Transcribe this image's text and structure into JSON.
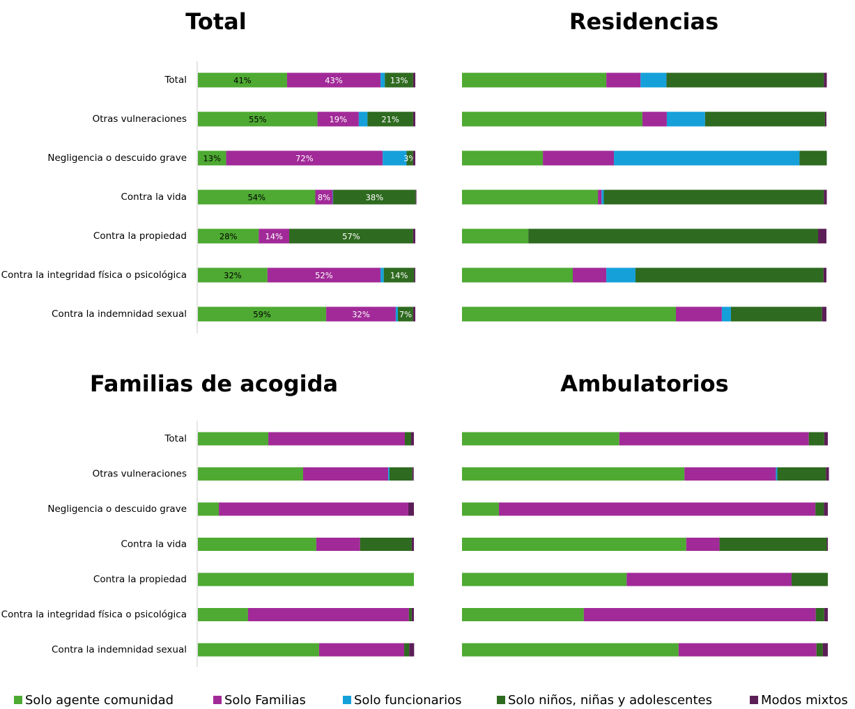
{
  "chart_data": [
    {
      "type": "bar",
      "orientation": "horizontal",
      "stacked": true,
      "title": "Total",
      "categories": [
        "Total",
        "Otras vulneraciones",
        "Negligencia o descuido grave",
        "Contra la vida",
        "Contra la propiedad",
        "Contra la integridad física o psicológica",
        "Contra la indemnidad sexual"
      ],
      "xlim": [
        0,
        100
      ],
      "series": [
        {
          "name": "Solo agente comunidad",
          "color": "#4eaa32",
          "values": [
            41,
            55,
            13,
            54,
            28,
            32,
            59
          ],
          "value_labels": [
            "41%",
            "55%",
            "13%",
            "54%",
            "28%",
            "32%",
            "59%"
          ]
        },
        {
          "name": "Solo Familias",
          "color": "#a12a98",
          "values": [
            43,
            19,
            72,
            8,
            14,
            52,
            32
          ],
          "value_labels": [
            "43%",
            "19%",
            "72%",
            "8%",
            "14%",
            "52%",
            "32%"
          ]
        },
        {
          "name": "Solo funcionarios",
          "color": "#15a0da",
          "values": [
            2,
            4,
            11,
            0.2,
            0,
            1.5,
            1
          ]
        },
        {
          "name": "Solo niños, niñas y adolescentes",
          "color": "#2e6a1f",
          "values": [
            13,
            21,
            3,
            38,
            57,
            14,
            7
          ],
          "value_labels": [
            "13%",
            "21%",
            "3%",
            "38%",
            "57%",
            "14%",
            "7%"
          ]
        },
        {
          "name": "Modos mixtos",
          "color": "#5c1e57",
          "values": [
            1,
            1,
            1,
            0.3,
            1,
            0.5,
            1
          ]
        }
      ]
    },
    {
      "type": "bar",
      "orientation": "horizontal",
      "stacked": true,
      "title": "Residencias",
      "xlim": [
        0,
        100
      ],
      "series": [
        {
          "values": [
            39.6,
            49.5,
            22.2,
            37.3,
            18.2,
            30.4,
            58.7
          ]
        },
        {
          "values": [
            9.4,
            6.7,
            19.5,
            1,
            0,
            9.2,
            12.6
          ]
        },
        {
          "values": [
            7.1,
            10.5,
            50.9,
            0.6,
            0,
            8,
            2.5
          ]
        },
        {
          "values": [
            43.2,
            32.9,
            7.5,
            60.4,
            79.5,
            51.6,
            25
          ]
        },
        {
          "values": [
            0.8,
            0.4,
            0,
            0.8,
            2.3,
            0.8,
            1.2
          ]
        }
      ]
    },
    {
      "type": "bar",
      "orientation": "horizontal",
      "stacked": true,
      "title": "Familias de acogida",
      "xlim": [
        0,
        100
      ],
      "categories": [
        "Total",
        "Otras vulneraciones",
        "Negligencia o descuido grave",
        "Contra la vida",
        "Contra la propiedad",
        "Contra la integridad física o psicológica",
        "Contra la indemnidad sexual"
      ],
      "series": [
        {
          "values": [
            32.6,
            48.7,
            9.7,
            54.8,
            100,
            23.2,
            56.1
          ]
        },
        {
          "values": [
            63.2,
            39.4,
            87.7,
            20.3,
            0,
            74.5,
            39.4
          ]
        },
        {
          "values": [
            0,
            0.6,
            0,
            0,
            0,
            0,
            0
          ]
        },
        {
          "values": [
            2.9,
            10.6,
            0,
            23.9,
            0,
            1.3,
            2.3
          ]
        },
        {
          "values": [
            1.3,
            0.6,
            2.6,
            1,
            0,
            1,
            2.3
          ]
        }
      ]
    },
    {
      "type": "bar",
      "orientation": "horizontal",
      "stacked": true,
      "title": "Ambulatorios",
      "xlim": [
        0,
        100
      ],
      "series": [
        {
          "values": [
            43,
            60.8,
            10.1,
            61.3,
            45,
            33.3,
            59.2
          ]
        },
        {
          "values": [
            51.8,
            25,
            86.5,
            9.1,
            45.1,
            63.4,
            37.7
          ]
        },
        {
          "values": [
            0,
            0.4,
            0,
            0,
            0,
            0,
            0
          ]
        },
        {
          "values": [
            4.2,
            13.3,
            2.3,
            29.3,
            9.9,
            2.3,
            1.7
          ]
        },
        {
          "values": [
            1,
            0.8,
            1.1,
            0.3,
            0,
            1,
            1.4
          ]
        }
      ]
    }
  ]
}
